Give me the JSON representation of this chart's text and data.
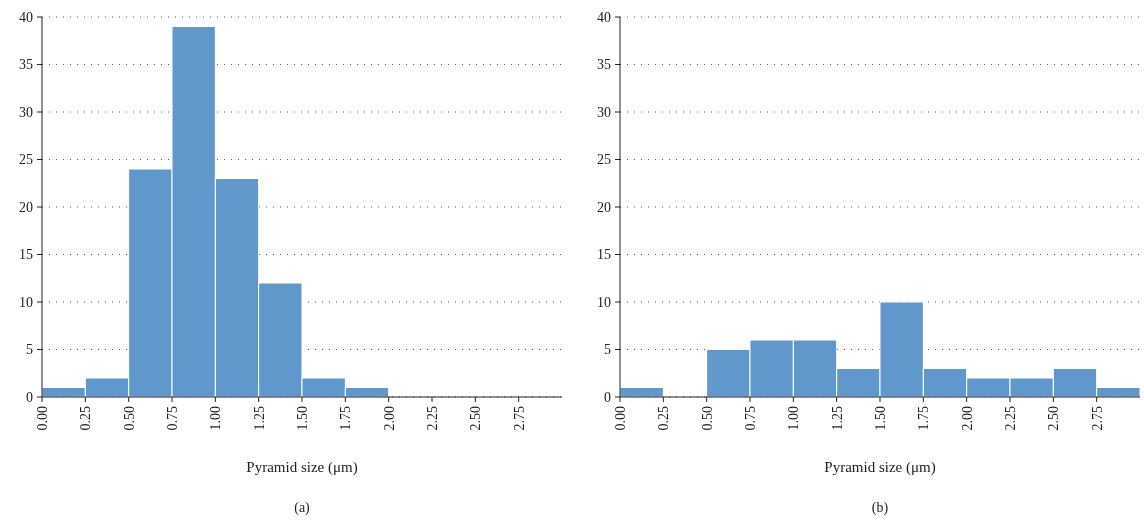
{
  "chart_data": [
    {
      "type": "histogram",
      "bins": [
        0,
        0.25,
        0.5,
        0.75,
        1.0,
        1.25,
        1.5,
        1.75,
        2.0
      ],
      "values": [
        1,
        2,
        24,
        39,
        23,
        12,
        2,
        1
      ],
      "color": "#6198cc",
      "xlim": [
        0,
        3
      ],
      "xticks": [
        {
          "value": 0,
          "label": "0.00"
        },
        {
          "value": 0.25,
          "label": "0.25"
        },
        {
          "value": 0.5,
          "label": "0.50"
        },
        {
          "value": 0.75,
          "label": "0.75"
        },
        {
          "value": 1,
          "label": "1.00"
        },
        {
          "value": 1.25,
          "label": "1.25"
        },
        {
          "value": 1.5,
          "label": "1.50"
        },
        {
          "value": 1.75,
          "label": "1.75"
        },
        {
          "value": 2,
          "label": "2.00"
        },
        {
          "value": 2.25,
          "label": "2.25"
        },
        {
          "value": 2.5,
          "label": "2.50"
        },
        {
          "value": 2.75,
          "label": "2.75"
        }
      ],
      "ylim": [
        0,
        40
      ],
      "yticks": [
        0,
        5,
        10,
        15,
        20,
        25,
        30,
        35,
        40
      ],
      "grid": "y",
      "xlabel": "Pyramid size (μm)",
      "annotations": [
        "(a)"
      ]
    },
    {
      "type": "histogram",
      "bins": [
        0,
        0.25,
        0.5,
        0.75,
        1.0,
        1.25,
        1.5,
        1.75,
        2.0,
        2.25,
        2.5,
        2.75,
        3.0
      ],
      "values": [
        1,
        0,
        5,
        6,
        6,
        3,
        10,
        3,
        2,
        2,
        3,
        1
      ],
      "color": "#6198cc",
      "xlim": [
        0,
        3
      ],
      "xticks": [
        {
          "value": 0,
          "label": "0.00"
        },
        {
          "value": 0.25,
          "label": "0.25"
        },
        {
          "value": 0.5,
          "label": "0.50"
        },
        {
          "value": 0.75,
          "label": "0.75"
        },
        {
          "value": 1,
          "label": "1.00"
        },
        {
          "value": 1.25,
          "label": "1.25"
        },
        {
          "value": 1.5,
          "label": "1.50"
        },
        {
          "value": 1.75,
          "label": "1.75"
        },
        {
          "value": 2,
          "label": "2.00"
        },
        {
          "value": 2.25,
          "label": "2.25"
        },
        {
          "value": 2.5,
          "label": "2.50"
        },
        {
          "value": 2.75,
          "label": "2.75"
        }
      ],
      "ylim": [
        0,
        40
      ],
      "yticks": [
        0,
        5,
        10,
        15,
        20,
        25,
        30,
        35,
        40
      ],
      "grid": "y",
      "xlabel": "Pyramid size (μm)",
      "annotations": [
        "(b)"
      ]
    }
  ]
}
